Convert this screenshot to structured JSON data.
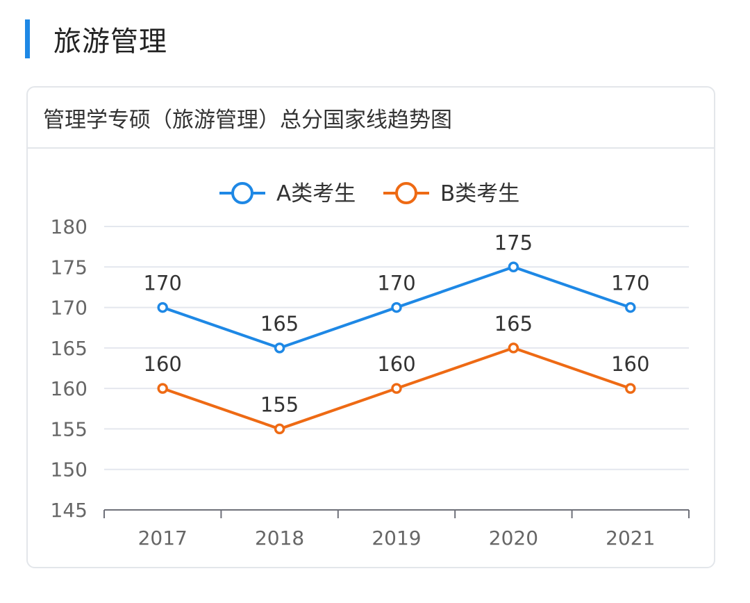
{
  "section": {
    "title": "旅游管理",
    "accent_color": "#1e88e5"
  },
  "card": {
    "title": "管理学专硕（旅游管理）总分国家线趋势图"
  },
  "chart_data": {
    "type": "line",
    "title": "管理学专硕（旅游管理）总分国家线趋势图",
    "xlabel": "",
    "ylabel": "",
    "categories": [
      "2017",
      "2018",
      "2019",
      "2020",
      "2021"
    ],
    "ylim": [
      145,
      180
    ],
    "y_ticks": [
      "145",
      "150",
      "155",
      "160",
      "165",
      "170",
      "175",
      "180"
    ],
    "grid": true,
    "legend_position": "top",
    "data_labels": true,
    "series": [
      {
        "name": "A类考生",
        "color": "#1e88e5",
        "values": [
          170,
          165,
          170,
          175,
          170
        ],
        "labels": [
          "170",
          "165",
          "170",
          "175",
          "170"
        ]
      },
      {
        "name": "B类考生",
        "color": "#ee6a14",
        "values": [
          160,
          155,
          160,
          165,
          160
        ],
        "labels": [
          "160",
          "155",
          "160",
          "165",
          "160"
        ]
      }
    ]
  }
}
